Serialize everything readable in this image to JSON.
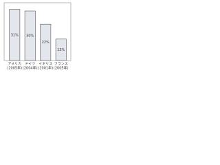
{
  "chart_data": {
    "type": "bar",
    "categories": [
      [
        "アメリカ",
        "(2005年)"
      ],
      [
        "ドイツ",
        "(2004年)"
      ],
      [
        "イギリス",
        "(2001年)"
      ],
      [
        "フランス",
        "(2005年)"
      ]
    ],
    "values": [
      31,
      30,
      22,
      13
    ],
    "value_labels": [
      "31%",
      "30%",
      "22%",
      "13%"
    ],
    "color": "#e4e6ee",
    "ylim": [
      0,
      35
    ]
  }
}
